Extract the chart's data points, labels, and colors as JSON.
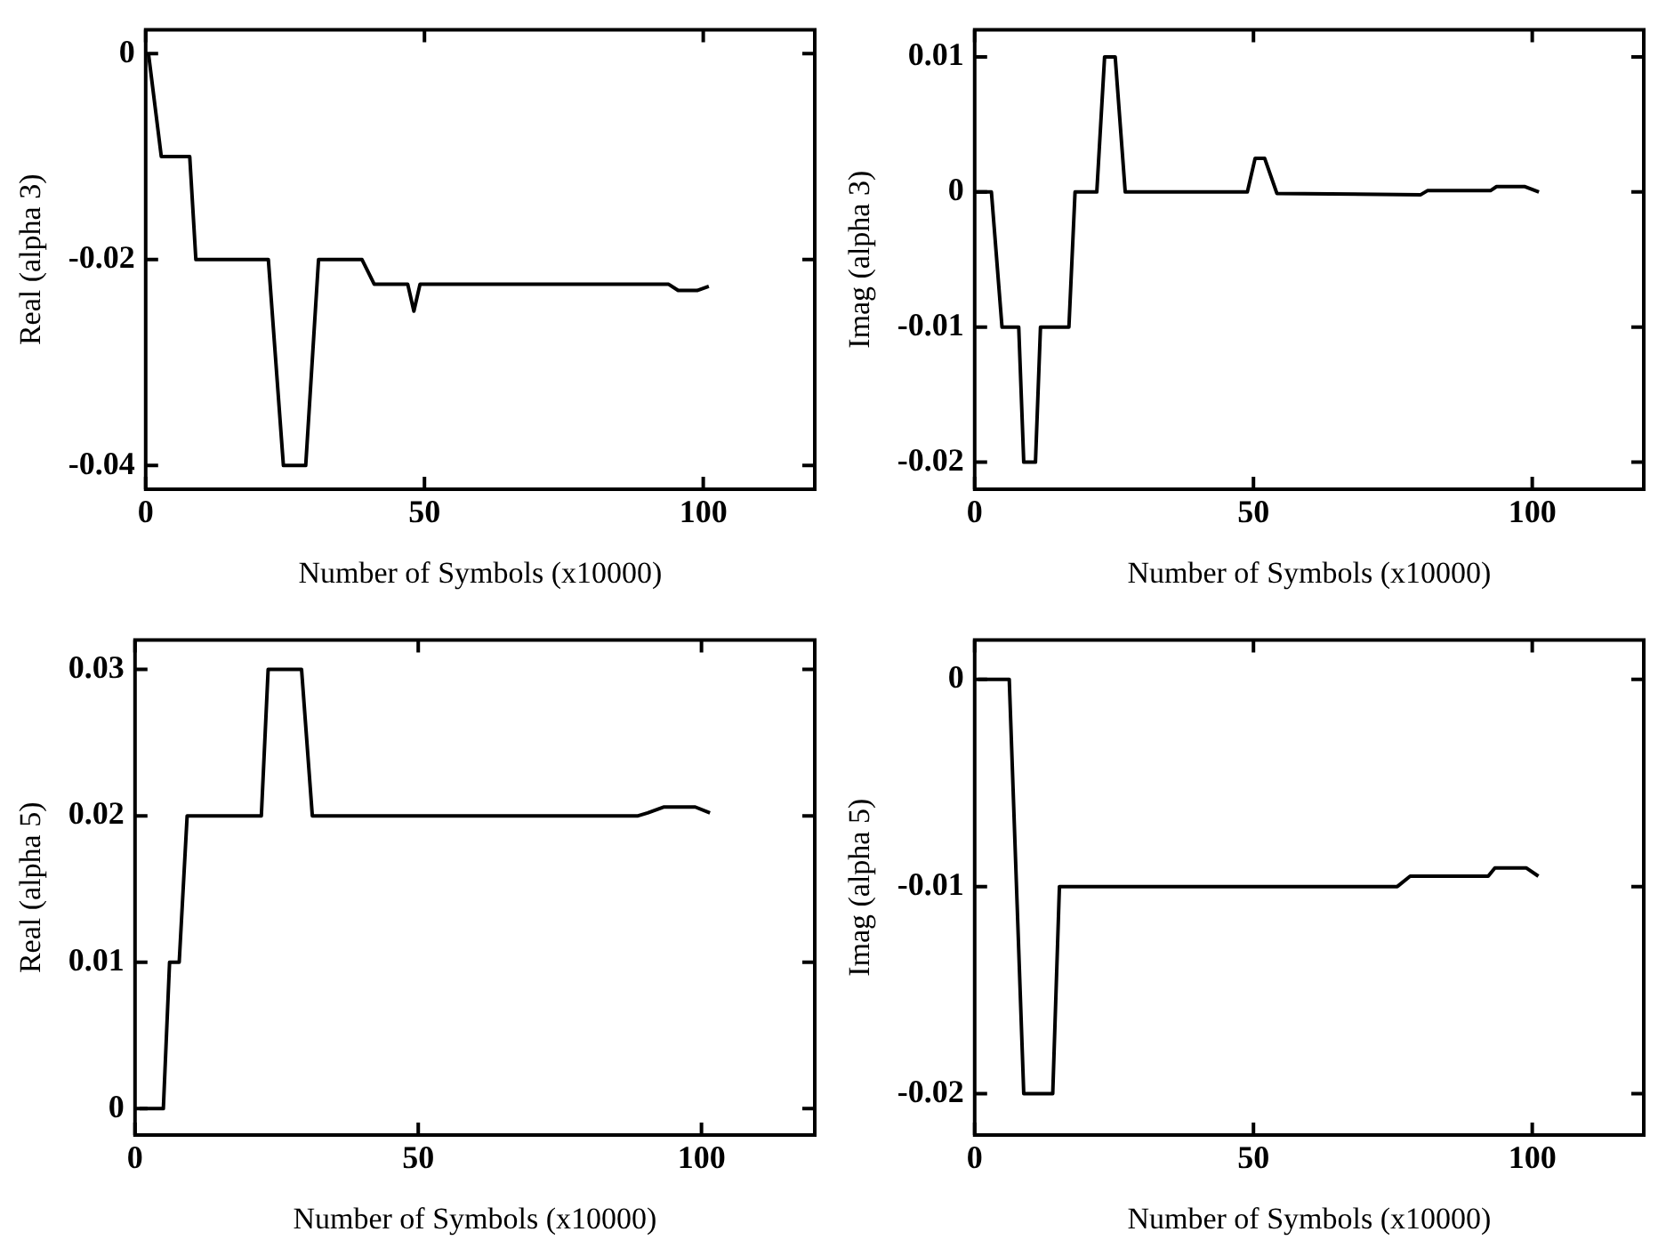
{
  "chart_data": [
    {
      "type": "line",
      "xlabel": "Number of Symbols (x10000)",
      "ylabel": "Real (alpha 3)",
      "marker": "none",
      "xlim": [
        0,
        120
      ],
      "xticks": [
        0,
        50,
        100
      ],
      "ylim": [
        -0.0423,
        0.0023
      ],
      "yticks": [
        0,
        -0.02,
        -0.04
      ],
      "x": [
        0.5,
        2.8,
        7.9,
        9,
        22,
        24.7,
        28.7,
        31,
        38.8,
        41,
        47,
        48.1,
        49.2,
        93.8,
        95.5,
        98.9,
        101
      ],
      "series": [
        {
          "color": "#000000",
          "values": [
            0,
            -0.01,
            -0.01,
            -0.02,
            -0.02,
            -0.04,
            -0.04,
            -0.02,
            -0.02,
            -0.0224,
            -0.0224,
            -0.025,
            -0.0224,
            -0.0224,
            -0.023,
            -0.023,
            -0.0226
          ]
        }
      ]
    },
    {
      "type": "line",
      "xlabel": "Number of Symbols (x10000)",
      "ylabel": "Imag (alpha 3)",
      "marker": "none",
      "xlim": [
        0,
        120
      ],
      "xticks": [
        0,
        50,
        100
      ],
      "ylim": [
        -0.022,
        0.012
      ],
      "yticks": [
        0.01,
        0,
        -0.01,
        -0.02
      ],
      "x": [
        0,
        3,
        4.9,
        7.9,
        8.8,
        10.9,
        11.8,
        16.9,
        18,
        21.9,
        23.3,
        25.2,
        27,
        48.9,
        50.3,
        52,
        54.2,
        80,
        81.2,
        92.5,
        93.6,
        98.7,
        101.2
      ],
      "series": [
        {
          "color": "#000000",
          "values": [
            0,
            0,
            -0.01,
            -0.01,
            -0.02,
            -0.02,
            -0.01,
            -0.01,
            0,
            0,
            0.01,
            0.01,
            0,
            0,
            0.0025,
            0.0025,
            -0.0001,
            -0.0002,
            0.0001,
            0.0001,
            0.0004,
            0.0004,
            0
          ]
        }
      ]
    },
    {
      "type": "line",
      "xlabel": "Number of Symbols (x10000)",
      "ylabel": "Real (alpha 5)",
      "marker": "none",
      "xlim": [
        0,
        120
      ],
      "xticks": [
        0,
        50,
        100
      ],
      "ylim": [
        -0.0018,
        0.032
      ],
      "yticks": [
        0,
        0.01,
        0.02,
        0.03
      ],
      "x": [
        0.8,
        5,
        6.1,
        7.8,
        9.2,
        22.3,
        23.5,
        29.4,
        31.3,
        88.8,
        90.5,
        93.3,
        98.9,
        101.5
      ],
      "series": [
        {
          "color": "#000000",
          "values": [
            0,
            0,
            0.01,
            0.01,
            0.02,
            0.02,
            0.03,
            0.03,
            0.02,
            0.02,
            0.0202,
            0.0206,
            0.0206,
            0.0202
          ]
        }
      ]
    },
    {
      "type": "line",
      "xlabel": "Number of Symbols (x10000)",
      "ylabel": "Imag (alpha 5)",
      "marker": "none",
      "xlim": [
        0,
        120
      ],
      "xticks": [
        0,
        50,
        100
      ],
      "ylim": [
        -0.022,
        0.0019
      ],
      "yticks": [
        0,
        -0.01,
        -0.02
      ],
      "x": [
        0.6,
        6.2,
        8.8,
        14,
        15.2,
        75.8,
        78.1,
        92.1,
        93.3,
        98.9,
        101.1
      ],
      "series": [
        {
          "color": "#000000",
          "values": [
            0,
            0,
            -0.02,
            -0.02,
            -0.01,
            -0.01,
            -0.0095,
            -0.0095,
            -0.0091,
            -0.0091,
            -0.0095
          ]
        }
      ]
    }
  ]
}
